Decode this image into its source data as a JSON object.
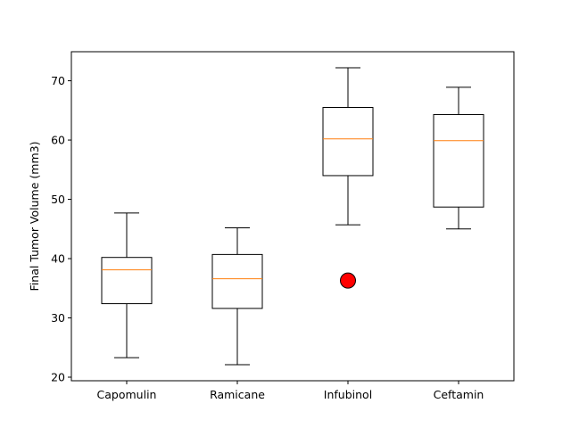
{
  "chart_data": {
    "type": "box",
    "title": "",
    "xlabel": "",
    "ylabel": "Final Tumor Volume (mm3)",
    "ylim": [
      19.4,
      74.9
    ],
    "yticks": [
      20,
      30,
      40,
      50,
      60,
      70
    ],
    "grid": false,
    "categories": [
      "Capomulin",
      "Ramicane",
      "Infubinol",
      "Ceftamin"
    ],
    "boxes": [
      {
        "name": "Capomulin",
        "whisker_low": 23.3,
        "q1": 32.4,
        "median": 38.1,
        "q3": 40.2,
        "whisker_high": 47.7,
        "outliers": []
      },
      {
        "name": "Ramicane",
        "whisker_low": 22.1,
        "q1": 31.6,
        "median": 36.6,
        "q3": 40.7,
        "whisker_high": 45.2,
        "outliers": []
      },
      {
        "name": "Infubinol",
        "whisker_low": 45.7,
        "q1": 54.0,
        "median": 60.2,
        "q3": 65.5,
        "whisker_high": 72.2,
        "outliers": [
          36.3
        ]
      },
      {
        "name": "Ceftamin",
        "whisker_low": 45.0,
        "q1": 48.7,
        "median": 59.9,
        "q3": 64.3,
        "whisker_high": 68.9,
        "outliers": []
      }
    ],
    "colors": {
      "box": "#000000",
      "median": "#ff7f0e",
      "outlier_fill": "#ff0000",
      "outlier_edge": "#000000"
    }
  }
}
